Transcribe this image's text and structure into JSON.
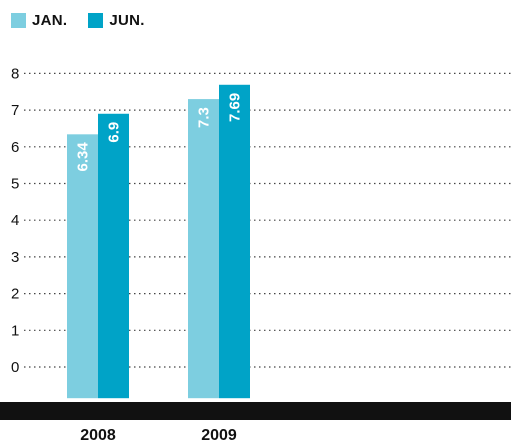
{
  "colors": {
    "jan": "#7dcee0",
    "jun": "#00a3c7",
    "axis_band": "#111111",
    "grid": "#444444",
    "text": "#111111",
    "bar_label": "#ffffff"
  },
  "legend": [
    {
      "label": "JAN.",
      "color": "#7dcee0"
    },
    {
      "label": "JUN.",
      "color": "#00a3c7"
    }
  ],
  "chart_data": {
    "type": "bar",
    "categories": [
      "2008",
      "2009"
    ],
    "series": [
      {
        "name": "JAN.",
        "values": [
          6.34,
          7.3
        ],
        "labels": [
          "6.34",
          "7.3"
        ]
      },
      {
        "name": "JUN.",
        "values": [
          6.9,
          7.69
        ],
        "labels": [
          "6.9",
          "7.69"
        ]
      }
    ],
    "y_ticks": [
      0,
      1,
      2,
      3,
      4,
      5,
      6,
      7,
      8
    ],
    "ylim": [
      -0.85,
      8
    ],
    "grid": "dotted horizontal",
    "legend_position": "top-left"
  }
}
